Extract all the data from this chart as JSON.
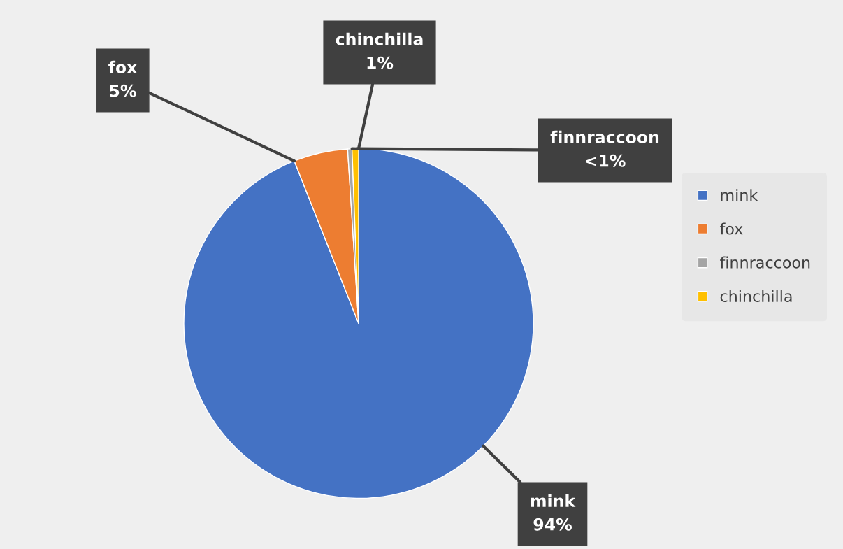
{
  "chart_data": {
    "type": "pie",
    "categories": [
      "mink",
      "fox",
      "finnraccoon",
      "chinchilla"
    ],
    "values": [
      94,
      5,
      0.4,
      0.6
    ],
    "colors": [
      "#4472c4",
      "#ed7d31",
      "#a5a5a5",
      "#ffc000"
    ],
    "value_labels": [
      "94%",
      "5%",
      "<1%",
      "1%"
    ],
    "legend": "right"
  }
}
